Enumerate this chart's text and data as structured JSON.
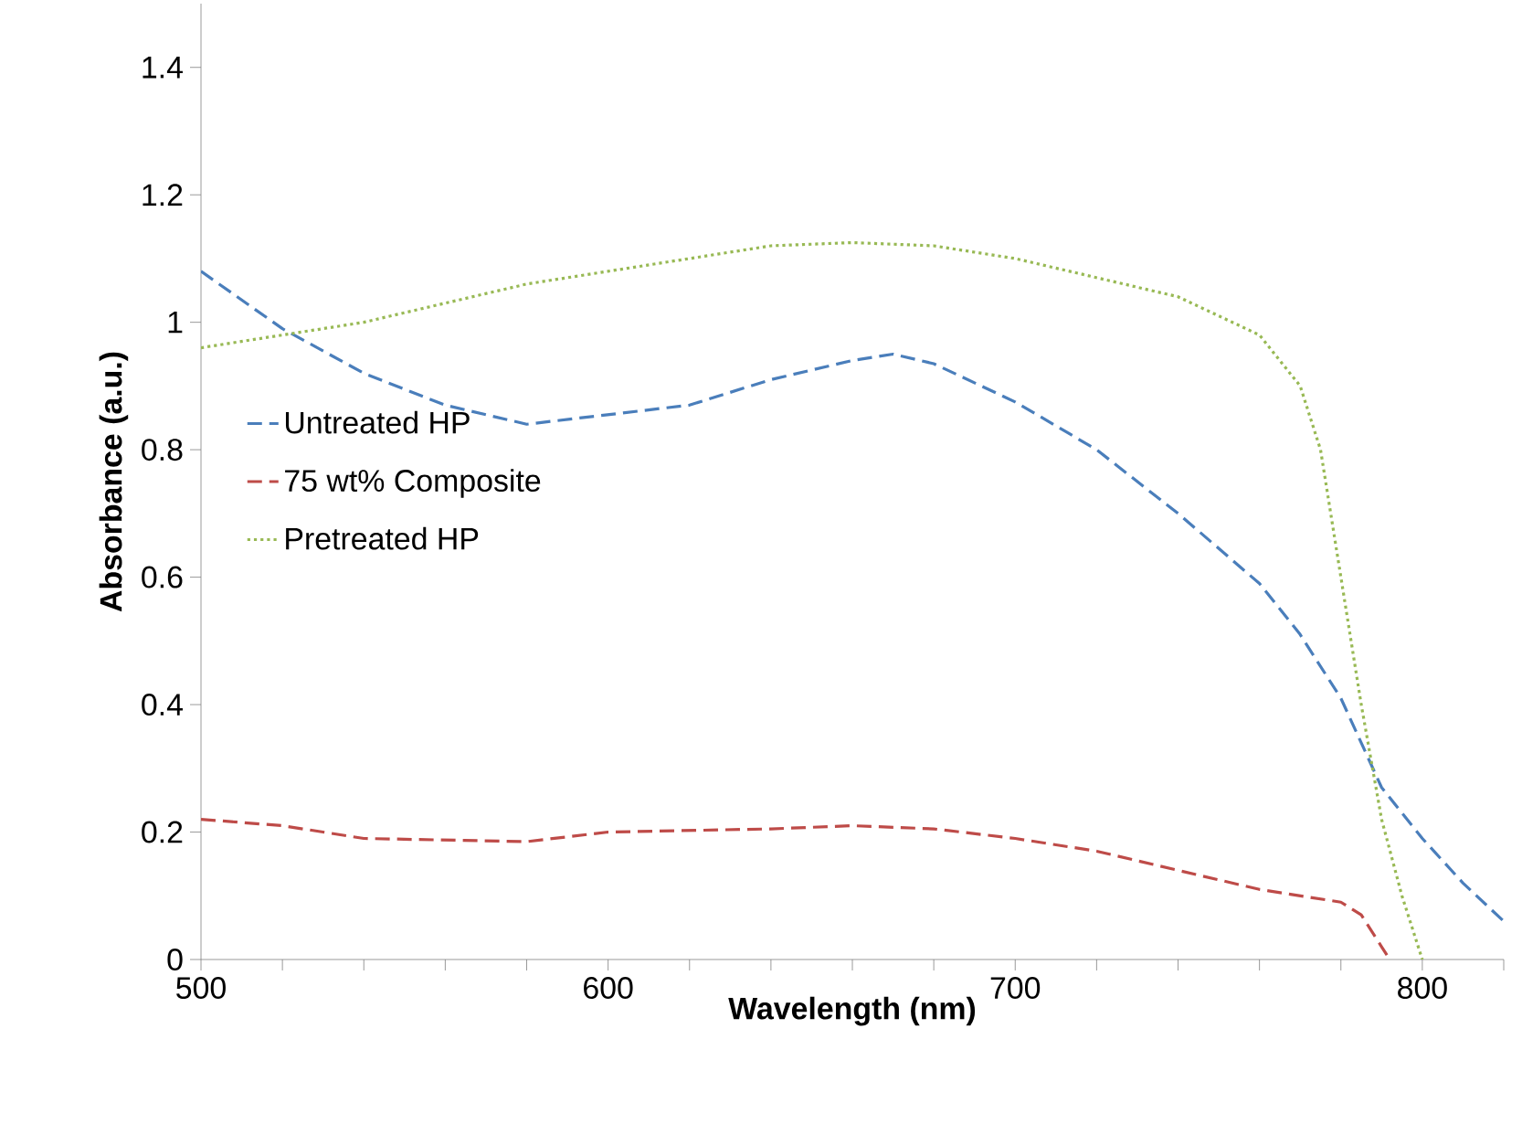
{
  "chart_data": {
    "type": "line",
    "xlabel": "Wavelength (nm)",
    "ylabel": "Absorbance (a.u.)",
    "xlim": [
      500,
      820
    ],
    "ylim": [
      0,
      1.5
    ],
    "xticks": [
      500,
      {
        "value": 520,
        "label": null
      },
      {
        "value": 540,
        "label": null
      },
      {
        "value": 560,
        "label": null
      },
      {
        "value": 580,
        "label": null
      },
      600,
      {
        "value": 620,
        "label": null
      },
      {
        "value": 640,
        "label": null
      },
      {
        "value": 660,
        "label": null
      },
      {
        "value": 680,
        "label": null
      },
      700,
      {
        "value": 720,
        "label": null
      },
      {
        "value": 740,
        "label": null
      },
      {
        "value": 760,
        "label": null
      },
      {
        "value": 780,
        "label": null
      },
      800,
      {
        "value": 820,
        "label": null
      }
    ],
    "yticks": [
      0,
      0.2,
      0.4,
      0.6,
      0.8,
      1,
      1.2,
      1.4
    ],
    "legend": "left",
    "grid": false,
    "marker": "none",
    "series": [
      {
        "name": "Untreated HP",
        "color": "#4a7ebb",
        "line_style": "dashed",
        "x": [
          500,
          520,
          540,
          560,
          580,
          600,
          620,
          640,
          660,
          670,
          680,
          700,
          720,
          740,
          760,
          770,
          780,
          790,
          800,
          810,
          820
        ],
        "values": [
          1.08,
          0.99,
          0.92,
          0.87,
          0.84,
          0.855,
          0.87,
          0.91,
          0.94,
          0.95,
          0.935,
          0.875,
          0.8,
          0.7,
          0.59,
          0.51,
          0.41,
          0.27,
          0.19,
          0.12,
          0.06
        ]
      },
      {
        "name": "75 wt% Composite",
        "color": "#be4b48",
        "line_style": "dashed",
        "x": [
          500,
          520,
          540,
          580,
          600,
          640,
          660,
          680,
          700,
          720,
          740,
          760,
          780,
          785,
          790,
          792
        ],
        "values": [
          0.22,
          0.21,
          0.19,
          0.185,
          0.2,
          0.205,
          0.21,
          0.205,
          0.19,
          0.17,
          0.14,
          0.11,
          0.09,
          0.07,
          0.02,
          0
        ]
      },
      {
        "name": "Pretreated HP",
        "color": "#98b954",
        "line_style": "dotted",
        "x": [
          500,
          520,
          540,
          560,
          580,
          600,
          620,
          640,
          660,
          680,
          700,
          720,
          740,
          760,
          770,
          775,
          780,
          785,
          790,
          795,
          800
        ],
        "values": [
          0.96,
          0.98,
          1.0,
          1.03,
          1.06,
          1.08,
          1.1,
          1.12,
          1.125,
          1.12,
          1.1,
          1.07,
          1.04,
          0.98,
          0.9,
          0.8,
          0.6,
          0.4,
          0.22,
          0.1,
          0
        ]
      }
    ]
  }
}
